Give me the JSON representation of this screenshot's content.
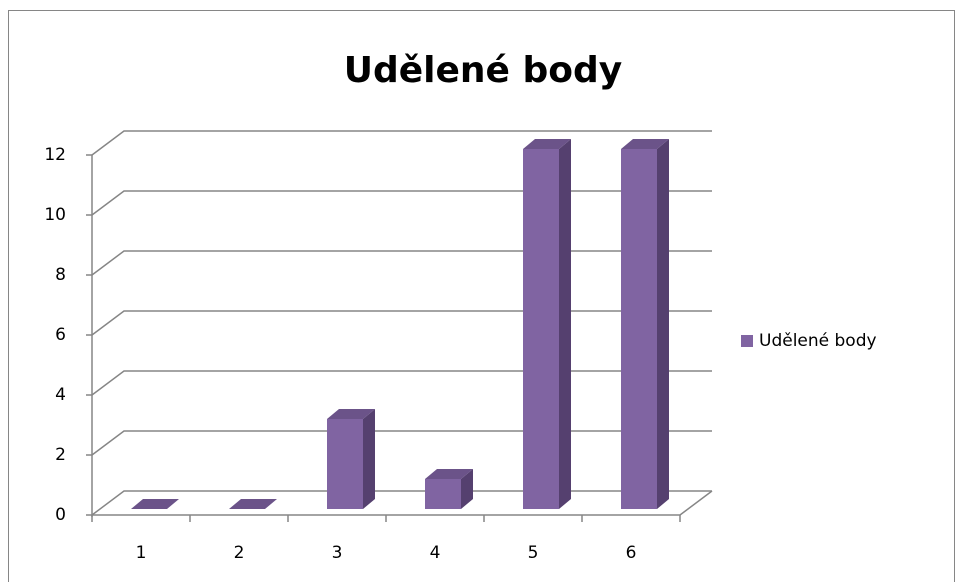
{
  "chart_data": {
    "type": "bar3d",
    "title": "Udělené body",
    "categories": [
      "1",
      "2",
      "3",
      "4",
      "5",
      "6"
    ],
    "series": [
      {
        "name": "Udělené body",
        "color": "#8064a2",
        "values": [
          0,
          0,
          3,
          1,
          12,
          12
        ]
      }
    ],
    "ylim": [
      0,
      12
    ],
    "yticks": [
      0,
      2,
      4,
      6,
      8,
      10,
      12
    ],
    "grid": true,
    "legend": "right"
  }
}
